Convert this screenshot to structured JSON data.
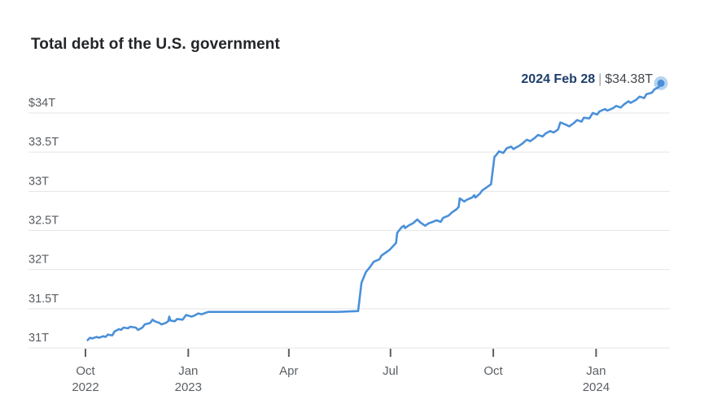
{
  "page": {
    "background": "#ffffff"
  },
  "chart": {
    "title": "Total debt of the U.S. government",
    "annotation": {
      "date": "2024 Feb 28",
      "separator": "|",
      "value": "$34.38T"
    }
  },
  "style": {
    "line_color": "#4a90d9",
    "halo_opacity": 0.4,
    "grid_color": "#e4e5e7",
    "axis_label_color": "#5c6065",
    "title_color": "#232529",
    "annotation_date_color": "#1e3d6b",
    "annotation_value_color": "#43474c"
  },
  "chart_data": {
    "type": "line",
    "title": "Total debt of the U.S. government",
    "xlabel": "",
    "ylabel": "",
    "unit": "trillions of U.S. dollars",
    "grid": "horizontal",
    "legend": "none",
    "x_domain": [
      "2022-10-01",
      "2024-02-28"
    ],
    "ylim": [
      31,
      34.5
    ],
    "y_ticks": [
      {
        "value": 34,
        "label": "$34T"
      },
      {
        "value": 33.5,
        "label": "33.5T"
      },
      {
        "value": 33,
        "label": "33T"
      },
      {
        "value": 32.5,
        "label": "32.5T"
      },
      {
        "value": 32,
        "label": "32T"
      },
      {
        "value": 31.5,
        "label": "31.5T"
      },
      {
        "value": 31,
        "label": "31T"
      }
    ],
    "x_ticks": [
      {
        "date": "2022-10-01",
        "label": "Oct",
        "sublabel": "2022"
      },
      {
        "date": "2023-01-01",
        "label": "Jan",
        "sublabel": "2023"
      },
      {
        "date": "2023-04-01",
        "label": "Apr"
      },
      {
        "date": "2023-07-01",
        "label": "Jul"
      },
      {
        "date": "2023-10-01",
        "label": "Oct"
      },
      {
        "date": "2024-01-01",
        "label": "Jan",
        "sublabel": "2024"
      }
    ],
    "end_marker": {
      "date": "2024-02-28",
      "value": 34.38,
      "label": "2024 Feb 28 | $34.38T"
    },
    "series": [
      {
        "name": "Total U.S. government debt",
        "color": "#4a90d9",
        "points": [
          [
            "2022-10-03",
            31.1
          ],
          [
            "2022-10-05",
            31.13
          ],
          [
            "2022-10-07",
            31.12
          ],
          [
            "2022-10-11",
            31.14
          ],
          [
            "2022-10-13",
            31.13
          ],
          [
            "2022-10-17",
            31.15
          ],
          [
            "2022-10-19",
            31.14
          ],
          [
            "2022-10-21",
            31.17
          ],
          [
            "2022-10-25",
            31.16
          ],
          [
            "2022-10-27",
            31.21
          ],
          [
            "2022-10-31",
            31.24
          ],
          [
            "2022-11-02",
            31.23
          ],
          [
            "2022-11-04",
            31.26
          ],
          [
            "2022-11-08",
            31.25
          ],
          [
            "2022-11-10",
            31.27
          ],
          [
            "2022-11-15",
            31.26
          ],
          [
            "2022-11-17",
            31.23
          ],
          [
            "2022-11-21",
            31.26
          ],
          [
            "2022-11-23",
            31.3
          ],
          [
            "2022-11-28",
            31.32
          ],
          [
            "2022-11-30",
            31.36
          ],
          [
            "2022-12-02",
            31.34
          ],
          [
            "2022-12-06",
            31.32
          ],
          [
            "2022-12-08",
            31.3
          ],
          [
            "2022-12-12",
            31.32
          ],
          [
            "2022-12-14",
            31.34
          ],
          [
            "2022-12-15",
            31.4
          ],
          [
            "2022-12-16",
            31.35
          ],
          [
            "2022-12-20",
            31.34
          ],
          [
            "2022-12-22",
            31.37
          ],
          [
            "2022-12-27",
            31.36
          ],
          [
            "2022-12-30",
            31.42
          ],
          [
            "2023-01-04",
            31.4
          ],
          [
            "2023-01-06",
            31.41
          ],
          [
            "2023-01-10",
            31.44
          ],
          [
            "2023-01-13",
            31.43
          ],
          [
            "2023-01-19",
            31.46
          ],
          [
            "2023-02-15",
            31.46
          ],
          [
            "2023-03-15",
            31.46
          ],
          [
            "2023-04-14",
            31.46
          ],
          [
            "2023-05-15",
            31.46
          ],
          [
            "2023-06-02",
            31.47
          ],
          [
            "2023-06-05",
            31.83
          ],
          [
            "2023-06-07",
            31.9
          ],
          [
            "2023-06-09",
            31.97
          ],
          [
            "2023-06-12",
            32.02
          ],
          [
            "2023-06-14",
            32.06
          ],
          [
            "2023-06-16",
            32.1
          ],
          [
            "2023-06-21",
            32.13
          ],
          [
            "2023-06-23",
            32.18
          ],
          [
            "2023-06-27",
            32.22
          ],
          [
            "2023-06-30",
            32.25
          ],
          [
            "2023-07-06",
            32.34
          ],
          [
            "2023-07-07",
            32.47
          ],
          [
            "2023-07-11",
            32.54
          ],
          [
            "2023-07-13",
            32.56
          ],
          [
            "2023-07-14",
            32.53
          ],
          [
            "2023-07-18",
            32.57
          ],
          [
            "2023-07-21",
            32.59
          ],
          [
            "2023-07-25",
            32.64
          ],
          [
            "2023-07-28",
            32.6
          ],
          [
            "2023-08-01",
            32.56
          ],
          [
            "2023-08-04",
            32.59
          ],
          [
            "2023-08-08",
            32.61
          ],
          [
            "2023-08-11",
            32.63
          ],
          [
            "2023-08-15",
            32.61
          ],
          [
            "2023-08-17",
            32.66
          ],
          [
            "2023-08-22",
            32.69
          ],
          [
            "2023-08-25",
            32.73
          ],
          [
            "2023-08-29",
            32.77
          ],
          [
            "2023-08-31",
            32.8
          ],
          [
            "2023-09-01",
            32.91
          ],
          [
            "2023-09-05",
            32.87
          ],
          [
            "2023-09-07",
            32.89
          ],
          [
            "2023-09-12",
            32.92
          ],
          [
            "2023-09-14",
            32.95
          ],
          [
            "2023-09-15",
            32.92
          ],
          [
            "2023-09-19",
            32.97
          ],
          [
            "2023-09-21",
            33.01
          ],
          [
            "2023-09-26",
            33.06
          ],
          [
            "2023-09-29",
            33.09
          ],
          [
            "2023-10-02",
            33.44
          ],
          [
            "2023-10-04",
            33.47
          ],
          [
            "2023-10-06",
            33.51
          ],
          [
            "2023-10-10",
            33.49
          ],
          [
            "2023-10-13",
            33.55
          ],
          [
            "2023-10-17",
            33.57
          ],
          [
            "2023-10-19",
            33.54
          ],
          [
            "2023-10-24",
            33.58
          ],
          [
            "2023-10-27",
            33.61
          ],
          [
            "2023-10-31",
            33.66
          ],
          [
            "2023-11-03",
            33.64
          ],
          [
            "2023-11-07",
            33.68
          ],
          [
            "2023-11-10",
            33.72
          ],
          [
            "2023-11-14",
            33.7
          ],
          [
            "2023-11-17",
            33.74
          ],
          [
            "2023-11-21",
            33.77
          ],
          [
            "2023-11-24",
            33.75
          ],
          [
            "2023-11-28",
            33.79
          ],
          [
            "2023-11-30",
            33.88
          ],
          [
            "2023-12-05",
            33.85
          ],
          [
            "2023-12-08",
            33.83
          ],
          [
            "2023-12-12",
            33.87
          ],
          [
            "2023-12-15",
            33.91
          ],
          [
            "2023-12-19",
            33.89
          ],
          [
            "2023-12-21",
            33.94
          ],
          [
            "2023-12-26",
            33.93
          ],
          [
            "2023-12-29",
            34.0
          ],
          [
            "2024-01-02",
            33.98
          ],
          [
            "2024-01-04",
            34.02
          ],
          [
            "2024-01-09",
            34.05
          ],
          [
            "2024-01-11",
            34.03
          ],
          [
            "2024-01-16",
            34.06
          ],
          [
            "2024-01-19",
            34.09
          ],
          [
            "2024-01-23",
            34.07
          ],
          [
            "2024-01-26",
            34.11
          ],
          [
            "2024-01-30",
            34.15
          ],
          [
            "2024-02-01",
            34.13
          ],
          [
            "2024-02-06",
            34.17
          ],
          [
            "2024-02-09",
            34.21
          ],
          [
            "2024-02-13",
            34.19
          ],
          [
            "2024-02-15",
            34.24
          ],
          [
            "2024-02-20",
            34.26
          ],
          [
            "2024-02-22",
            34.3
          ],
          [
            "2024-02-26",
            34.33
          ],
          [
            "2024-02-27",
            34.36
          ],
          [
            "2024-02-28",
            34.38
          ]
        ]
      }
    ]
  }
}
